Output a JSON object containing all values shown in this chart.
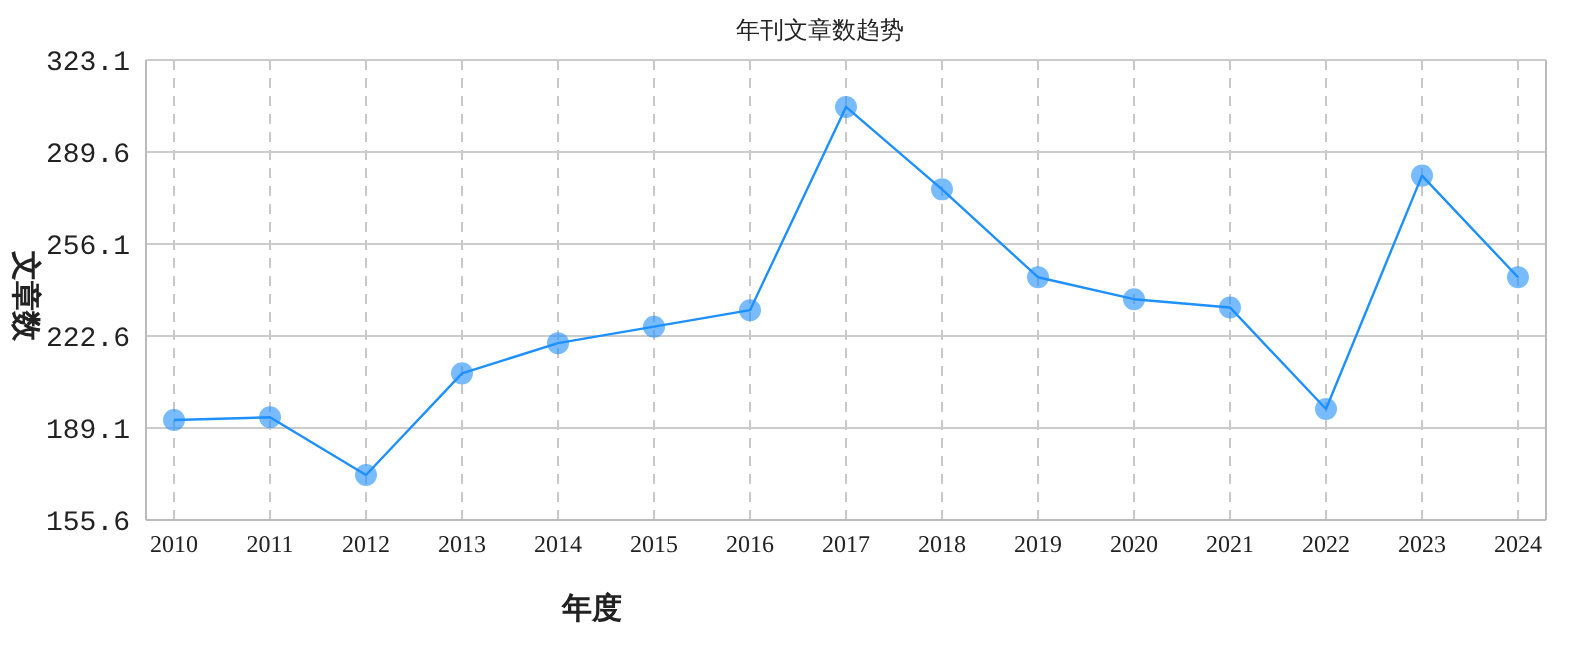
{
  "chart_data": {
    "type": "line",
    "title": "年刊文章数趋势",
    "xlabel": "年度",
    "ylabel": "文章数",
    "categories": [
      "2010",
      "2011",
      "2012",
      "2013",
      "2014",
      "2015",
      "2016",
      "2017",
      "2018",
      "2019",
      "2020",
      "2021",
      "2022",
      "2023",
      "2024"
    ],
    "series": [
      {
        "color": "#1e90ff",
        "values": [
          192,
          193,
          172,
          209,
          220,
          226,
          232,
          306,
          276,
          244,
          236,
          233,
          196,
          281,
          244
        ]
      }
    ],
    "ylim": [
      155.6,
      323.1
    ],
    "yticks": [
      155.6,
      189.1,
      222.6,
      256.1,
      289.6,
      323.1
    ],
    "grid": true,
    "marker": "circle"
  }
}
